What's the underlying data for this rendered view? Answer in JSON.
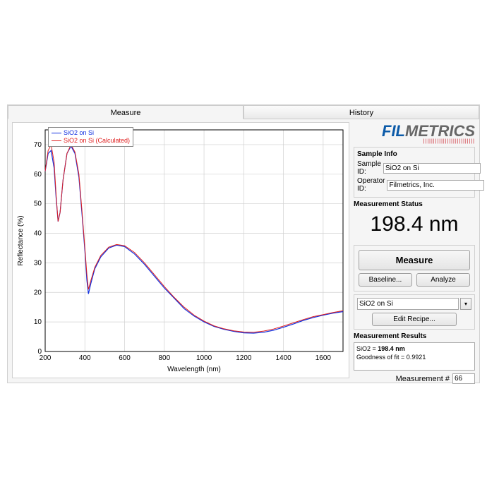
{
  "tabs": {
    "measure": "Measure",
    "history": "History"
  },
  "logo": {
    "fil": "FIL",
    "metrics": "METRICS",
    "tag": "||||||||||||||||||||||||||"
  },
  "sample_info": {
    "title": "Sample Info",
    "sample_id_label": "Sample ID:",
    "sample_id": "SiO2 on Si",
    "operator_id_label": "Operator ID:",
    "operator_id": "Filmetrics, Inc."
  },
  "status": {
    "title": "Measurement Status",
    "value": "198.4 nm"
  },
  "buttons": {
    "measure": "Measure",
    "baseline": "Baseline...",
    "analyze": "Analyze",
    "edit_recipe": "Edit Recipe..."
  },
  "recipe": {
    "selected": "SiO2 on Si"
  },
  "results": {
    "title": "Measurement Results",
    "line1a": "SiO2 = ",
    "line1b": "198.4 nm",
    "line2": "Goodness of fit = 0.9921"
  },
  "measurement_num": {
    "label": "Measurement #",
    "value": "66"
  },
  "chart": {
    "xlabel": "Wavelength (nm)",
    "ylabel": "Reflectance (%)",
    "xlim": [
      200,
      1700
    ],
    "ylim": [
      0,
      75
    ],
    "xticks": [
      200,
      400,
      600,
      800,
      1000,
      1200,
      1400,
      1600
    ],
    "yticks": [
      0,
      10,
      20,
      30,
      40,
      50,
      60,
      70
    ],
    "grid_color": "#d0d0d0",
    "axis_color": "#000000",
    "background": "#ffffff",
    "series": [
      {
        "name": "SiO2 on Si",
        "color": "#1030e0",
        "width": 1.2,
        "points": [
          [
            200,
            61
          ],
          [
            215,
            67
          ],
          [
            230,
            68
          ],
          [
            245,
            62
          ],
          [
            255,
            52
          ],
          [
            265,
            44
          ],
          [
            275,
            47
          ],
          [
            290,
            58
          ],
          [
            310,
            67
          ],
          [
            330,
            69.5
          ],
          [
            350,
            67
          ],
          [
            370,
            59
          ],
          [
            385,
            47
          ],
          [
            400,
            34
          ],
          [
            410,
            24
          ],
          [
            418,
            19.5
          ],
          [
            430,
            23
          ],
          [
            450,
            28
          ],
          [
            480,
            32
          ],
          [
            520,
            35
          ],
          [
            560,
            36
          ],
          [
            600,
            35.5
          ],
          [
            650,
            33
          ],
          [
            700,
            29.5
          ],
          [
            750,
            25.5
          ],
          [
            800,
            21.5
          ],
          [
            850,
            18
          ],
          [
            900,
            14.5
          ],
          [
            950,
            12
          ],
          [
            1000,
            10
          ],
          [
            1050,
            8.5
          ],
          [
            1100,
            7.5
          ],
          [
            1150,
            6.8
          ],
          [
            1200,
            6.3
          ],
          [
            1250,
            6.2
          ],
          [
            1300,
            6.5
          ],
          [
            1350,
            7.2
          ],
          [
            1400,
            8.2
          ],
          [
            1450,
            9.3
          ],
          [
            1500,
            10.5
          ],
          [
            1550,
            11.5
          ],
          [
            1600,
            12.3
          ],
          [
            1650,
            13
          ],
          [
            1700,
            13.5
          ]
        ]
      },
      {
        "name": "SiO2 on Si (Calculated)",
        "color": "#e02020",
        "width": 1.0,
        "points": [
          [
            200,
            61
          ],
          [
            215,
            68
          ],
          [
            230,
            70
          ],
          [
            245,
            64
          ],
          [
            255,
            53
          ],
          [
            265,
            44
          ],
          [
            275,
            47
          ],
          [
            290,
            58
          ],
          [
            310,
            67
          ],
          [
            330,
            70
          ],
          [
            350,
            67.5
          ],
          [
            370,
            60
          ],
          [
            385,
            48
          ],
          [
            400,
            35
          ],
          [
            410,
            26
          ],
          [
            418,
            21
          ],
          [
            430,
            24
          ],
          [
            450,
            28.5
          ],
          [
            480,
            32.5
          ],
          [
            520,
            35.3
          ],
          [
            560,
            36.2
          ],
          [
            600,
            35.8
          ],
          [
            650,
            33.5
          ],
          [
            700,
            30
          ],
          [
            750,
            26
          ],
          [
            800,
            22
          ],
          [
            850,
            18.3
          ],
          [
            900,
            15
          ],
          [
            950,
            12.3
          ],
          [
            1000,
            10.3
          ],
          [
            1050,
            8.7
          ],
          [
            1100,
            7.7
          ],
          [
            1150,
            7
          ],
          [
            1200,
            6.6
          ],
          [
            1250,
            6.5
          ],
          [
            1300,
            6.9
          ],
          [
            1350,
            7.6
          ],
          [
            1400,
            8.6
          ],
          [
            1450,
            9.7
          ],
          [
            1500,
            10.8
          ],
          [
            1550,
            11.8
          ],
          [
            1600,
            12.5
          ],
          [
            1650,
            13.2
          ],
          [
            1700,
            13.8
          ]
        ]
      }
    ]
  }
}
